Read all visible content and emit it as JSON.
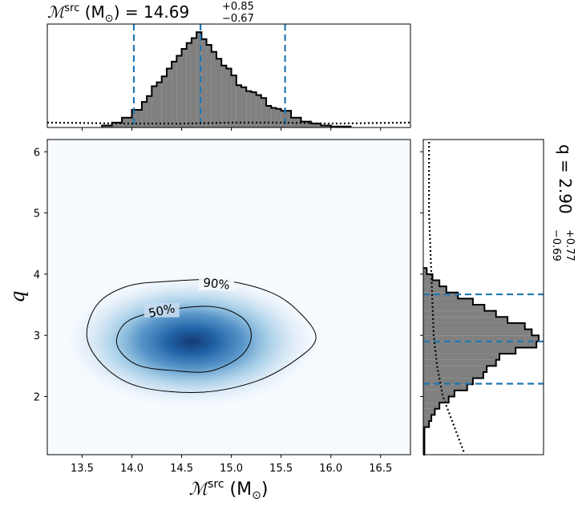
{
  "chart_data": {
    "type": "corner-plot",
    "top_title": {
      "prefix": "ℳ",
      "sup": "src",
      "mid": " (M",
      "sub": "⊙",
      "suffix": ") = 14.69",
      "err_plus": "+0.85",
      "err_minus": "−0.67"
    },
    "right_title": {
      "prefix": "q = 2.90",
      "err_plus": "+0.77",
      "err_minus": "−0.69"
    },
    "xlabel": {
      "prefix": "ℳ",
      "sup": "src",
      "mid": " (M",
      "sub": "⊙",
      "suffix": ")"
    },
    "ylabel": "q",
    "xlim": [
      13.15,
      16.8
    ],
    "ylim": [
      1.05,
      6.2
    ],
    "x_ticks": [
      13.5,
      14.0,
      14.5,
      15.0,
      15.5,
      16.0,
      16.5
    ],
    "x_tick_labels": [
      "13.5",
      "14.0",
      "14.5",
      "15.0",
      "15.5",
      "16.0",
      "16.5"
    ],
    "y_ticks": [
      2,
      3,
      4,
      5,
      6
    ],
    "y_tick_labels": [
      "2",
      "3",
      "4",
      "5",
      "6"
    ],
    "colors": {
      "hist_fill": "#808080",
      "quantile_line": "#1f77b4",
      "density": "#08519c"
    },
    "mc_quantiles": [
      14.02,
      14.69,
      15.54
    ],
    "q_quantiles": [
      2.21,
      2.9,
      3.67
    ],
    "mc_histogram": {
      "bin_edges": [
        13.7,
        13.8,
        13.9,
        14.0,
        14.1,
        14.15,
        14.2,
        14.25,
        14.3,
        14.35,
        14.4,
        14.45,
        14.5,
        14.55,
        14.6,
        14.65,
        14.7,
        14.75,
        14.8,
        14.85,
        14.9,
        14.95,
        15.0,
        15.05,
        15.1,
        15.15,
        15.2,
        15.25,
        15.3,
        15.35,
        15.4,
        15.45,
        15.5,
        15.6,
        15.7,
        15.8,
        15.9,
        16.0,
        16.2
      ],
      "densities": [
        0.02,
        0.05,
        0.1,
        0.18,
        0.26,
        0.32,
        0.42,
        0.46,
        0.52,
        0.6,
        0.67,
        0.73,
        0.8,
        0.86,
        0.91,
        0.97,
        0.9,
        0.84,
        0.77,
        0.7,
        0.63,
        0.6,
        0.53,
        0.43,
        0.41,
        0.37,
        0.36,
        0.33,
        0.3,
        0.22,
        0.2,
        0.19,
        0.17,
        0.1,
        0.06,
        0.04,
        0.02,
        0.01
      ]
    },
    "mc_prior": [
      [
        13.15,
        0.05
      ],
      [
        14.0,
        0.04
      ],
      [
        14.5,
        0.04
      ],
      [
        15.0,
        0.05
      ],
      [
        15.5,
        0.05
      ],
      [
        16.0,
        0.04
      ],
      [
        16.8,
        0.05
      ]
    ],
    "q_histogram": {
      "bin_edges": [
        1.05,
        1.5,
        1.6,
        1.7,
        1.8,
        1.9,
        2.0,
        2.1,
        2.2,
        2.3,
        2.4,
        2.5,
        2.6,
        2.7,
        2.8,
        2.9,
        3.0,
        3.1,
        3.2,
        3.3,
        3.4,
        3.5,
        3.6,
        3.7,
        3.8,
        3.9,
        4.0,
        4.1
      ],
      "densities": [
        0.01,
        0.05,
        0.07,
        0.1,
        0.14,
        0.22,
        0.27,
        0.38,
        0.43,
        0.52,
        0.55,
        0.63,
        0.66,
        0.8,
        0.98,
        1.0,
        0.94,
        0.88,
        0.73,
        0.63,
        0.53,
        0.43,
        0.3,
        0.2,
        0.14,
        0.08,
        0.03
      ]
    },
    "q_prior": [
      [
        1.1,
        0.35
      ],
      [
        1.5,
        0.27
      ],
      [
        2.0,
        0.17
      ],
      [
        2.5,
        0.12
      ],
      [
        3.0,
        0.09
      ],
      [
        3.5,
        0.08
      ],
      [
        4.0,
        0.07
      ],
      [
        4.5,
        0.06
      ],
      [
        5.0,
        0.05
      ],
      [
        5.5,
        0.05
      ],
      [
        6.2,
        0.05
      ]
    ],
    "density_peak": {
      "x": 14.6,
      "y": 2.9
    },
    "contours": [
      {
        "label": "50%",
        "label_pos": [
          14.3,
          3.4
        ],
        "points": [
          [
            14.3,
            3.4
          ],
          [
            14.8,
            3.47
          ],
          [
            15.1,
            3.3
          ],
          [
            15.2,
            3.0
          ],
          [
            15.1,
            2.67
          ],
          [
            14.8,
            2.42
          ],
          [
            14.45,
            2.42
          ],
          [
            14.05,
            2.52
          ],
          [
            13.85,
            2.85
          ],
          [
            13.95,
            3.22
          ]
        ]
      },
      {
        "label": "90%",
        "label_pos": [
          14.85,
          3.84
        ],
        "points": [
          [
            14.35,
            3.88
          ],
          [
            14.9,
            3.9
          ],
          [
            15.4,
            3.7
          ],
          [
            15.7,
            3.35
          ],
          [
            15.85,
            2.95
          ],
          [
            15.65,
            2.6
          ],
          [
            15.25,
            2.25
          ],
          [
            14.7,
            2.07
          ],
          [
            14.1,
            2.15
          ],
          [
            13.75,
            2.45
          ],
          [
            13.55,
            2.95
          ],
          [
            13.65,
            3.5
          ],
          [
            13.95,
            3.8
          ]
        ]
      }
    ]
  }
}
